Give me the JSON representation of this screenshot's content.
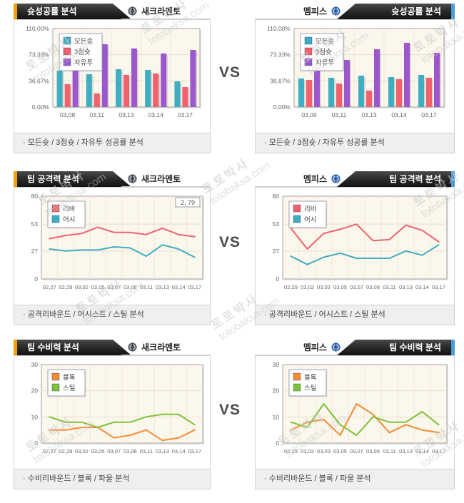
{
  "page": {
    "vs_label": "VS",
    "watermark": {
      "line1": "토토박사",
      "line2": "totobaksa.com"
    }
  },
  "colors": {
    "accent_orange": "#F5A200",
    "accent_blue": "#4D9BD5",
    "tab_bg": "#1a1a1a",
    "plot_bg": "#FBF7EC",
    "bar_all_shots": "#3FADC2",
    "bar_three_point": "#F2616E",
    "bar_free_throw": "#9C57CC",
    "line_rebound": "#F2616E",
    "line_assist": "#3FADC2",
    "line_block": "#F68B33",
    "line_steal": "#7DC239"
  },
  "teams": {
    "left": "새크라멘토",
    "right": "멤피스"
  },
  "panels": [
    {
      "side": "left",
      "title": "슛성공률 분석",
      "team": "새크라멘토",
      "caption": "· 모든슛 / 3점슛 / 자유투 성공률 분석",
      "chart": 0
    },
    {
      "side": "right",
      "title": "슛성공률 분석",
      "team": "멤피스",
      "caption": "· 모든슛 / 3점슛 / 자유투 성공률 분석",
      "chart": 1
    },
    {
      "side": "left",
      "title": "팀 공격력 분석",
      "team": "새크라멘토",
      "caption": "· 공격리바운드 / 어시스트 / 스틸 분석",
      "chart": 2
    },
    {
      "side": "right",
      "title": "팀 공격력 분석",
      "team": "멤피스",
      "caption": "· 공격리바운드 / 어시스트 / 스틸 분석",
      "chart": 3
    },
    {
      "side": "left",
      "title": "팀 수비력 분석",
      "team": "새크라멘토",
      "caption": "· 수비리바운드 / 블록 / 파울 분석",
      "chart": 4
    },
    {
      "side": "right",
      "title": "팀 수비력 분석",
      "team": "멤피스",
      "caption": "· 수비리바운드 / 블록 / 파울 분석",
      "chart": 5
    }
  ],
  "chart_data": [
    {
      "type": "bar",
      "title": "슛성공률 분석 - 새크라멘토",
      "categories": [
        "03,08",
        "03,11",
        "03,13",
        "03,14",
        "03,17"
      ],
      "series": [
        {
          "name": "모든슛",
          "color": "#3FADC2",
          "values": [
            51,
            46,
            53,
            52,
            36
          ]
        },
        {
          "name": "3점슛",
          "color": "#F2616E",
          "values": [
            32,
            19,
            45,
            47,
            28
          ]
        },
        {
          "name": "자유투",
          "color": "#9C57CC",
          "values": [
            59,
            88,
            82,
            75,
            80
          ]
        }
      ],
      "ylim": [
        0,
        110
      ],
      "yticks": [
        {
          "v": 0,
          "label": "0,00%"
        },
        {
          "v": 36.67,
          "label": "36,67%"
        },
        {
          "v": 73.33,
          "label": "73,33%"
        },
        {
          "v": 110,
          "label": "110,00%"
        }
      ],
      "grid": true,
      "legend_position": "top-left"
    },
    {
      "type": "bar",
      "title": "슛성공률 분석 - 멤피스",
      "categories": [
        "03,09",
        "03,11",
        "03,13",
        "03,14",
        "03,17"
      ],
      "series": [
        {
          "name": "모든슛",
          "color": "#3FADC2",
          "values": [
            40,
            41,
            44,
            42,
            45
          ]
        },
        {
          "name": "3점슛",
          "color": "#F2616E",
          "values": [
            38,
            33,
            23,
            39,
            41
          ]
        },
        {
          "name": "자유투",
          "color": "#9C57CC",
          "values": [
            58,
            66,
            81,
            90,
            76
          ]
        }
      ],
      "ylim": [
        0,
        110
      ],
      "yticks": [
        {
          "v": 0,
          "label": "0,00%"
        },
        {
          "v": 36.67,
          "label": "36,67%"
        },
        {
          "v": 73.33,
          "label": "73,33%"
        },
        {
          "v": 110,
          "label": "110,00%"
        }
      ],
      "grid": true,
      "legend_position": "top-left"
    },
    {
      "type": "line",
      "title": "팀 공격력 분석 - 새크라멘토",
      "categories": [
        "02,27",
        "02,29",
        "03,02",
        "03,05",
        "03,07",
        "03,08",
        "03,11",
        "03,13",
        "03,14",
        "03,17"
      ],
      "series": [
        {
          "name": "리바",
          "color": "#F2616E",
          "values": [
            39,
            42,
            44,
            50,
            45,
            45,
            43,
            49,
            43,
            41
          ]
        },
        {
          "name": "어시",
          "color": "#3FADC2",
          "values": [
            29,
            27,
            28,
            28,
            31,
            30,
            22,
            33,
            29,
            21
          ]
        }
      ],
      "ylim": [
        0,
        80
      ],
      "yticks": [
        {
          "v": 0,
          "label": "0"
        },
        {
          "v": 27,
          "label": "27"
        },
        {
          "v": 53,
          "label": "53"
        },
        {
          "v": 80,
          "label": "80"
        }
      ],
      "grid": true,
      "legend_position": "top-left",
      "annotation": "2, 79"
    },
    {
      "type": "line",
      "title": "팀 공격력 분석 - 멤피스",
      "categories": [
        "02,29",
        "03,02",
        "03,03",
        "03,05",
        "03,07",
        "03,09",
        "03,11",
        "03,13",
        "03,14",
        "03,17"
      ],
      "series": [
        {
          "name": "리바",
          "color": "#F2616E",
          "values": [
            49,
            29,
            44,
            48,
            53,
            37,
            38,
            52,
            47,
            36
          ]
        },
        {
          "name": "어시",
          "color": "#3FADC2",
          "values": [
            22,
            14,
            21,
            25,
            20,
            20,
            20,
            27,
            23,
            33
          ]
        }
      ],
      "ylim": [
        0,
        80
      ],
      "yticks": [
        {
          "v": 0,
          "label": "0"
        },
        {
          "v": 27,
          "label": "27"
        },
        {
          "v": 53,
          "label": "53"
        },
        {
          "v": 80,
          "label": "80"
        }
      ],
      "grid": true,
      "legend_position": "top-left"
    },
    {
      "type": "line",
      "title": "팀 수비력 분석 - 새크라멘토",
      "categories": [
        "02,27",
        "02,29",
        "03,02",
        "03,05",
        "03,07",
        "03,08",
        "03,11",
        "03,13",
        "03,14",
        "03,17"
      ],
      "series": [
        {
          "name": "블록",
          "color": "#F68B33",
          "values": [
            5,
            5,
            6,
            6,
            2,
            3,
            5,
            1,
            2,
            5
          ]
        },
        {
          "name": "스틸",
          "color": "#7DC239",
          "values": [
            10,
            8,
            8,
            6,
            8,
            8,
            10,
            11,
            11,
            7
          ]
        }
      ],
      "ylim": [
        0,
        30
      ],
      "yticks": [
        {
          "v": 0,
          "label": "0"
        },
        {
          "v": 10,
          "label": "10"
        },
        {
          "v": 20,
          "label": "20"
        },
        {
          "v": 30,
          "label": "30"
        }
      ],
      "grid": true,
      "legend_position": "top-left"
    },
    {
      "type": "line",
      "title": "팀 수비력 분석 - 멤피스",
      "categories": [
        "02,29",
        "03,02",
        "03,03",
        "03,05",
        "03,07",
        "03,09",
        "03,11",
        "03,13",
        "03,14",
        "03,17"
      ],
      "series": [
        {
          "name": "블록",
          "color": "#F68B33",
          "values": [
            5,
            8,
            9,
            3,
            15,
            11,
            4,
            7,
            5,
            4
          ]
        },
        {
          "name": "스틸",
          "color": "#7DC239",
          "values": [
            8,
            6,
            15,
            7,
            3,
            10,
            8,
            8,
            12,
            7
          ]
        }
      ],
      "ylim": [
        0,
        30
      ],
      "yticks": [
        {
          "v": 0,
          "label": "0"
        },
        {
          "v": 10,
          "label": "10"
        },
        {
          "v": 20,
          "label": "20"
        },
        {
          "v": 30,
          "label": "30"
        }
      ],
      "grid": true,
      "legend_position": "top-left"
    }
  ]
}
